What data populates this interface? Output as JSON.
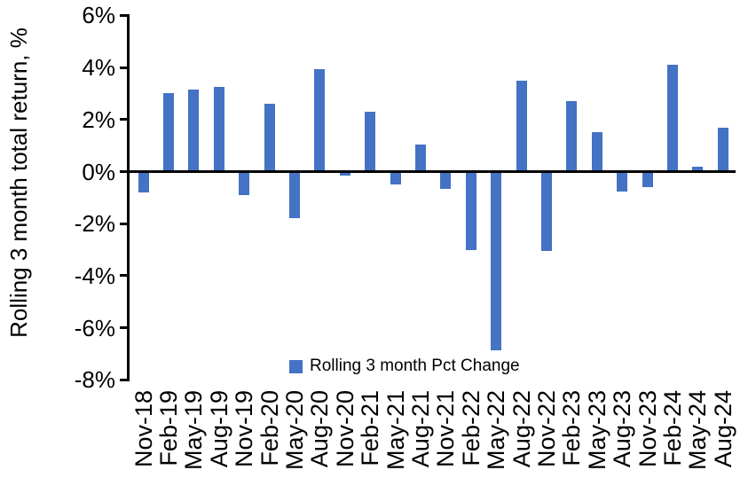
{
  "chart_data": {
    "type": "bar",
    "title": "",
    "ylabel": "Rolling 3 month total return, %",
    "xlabel": "",
    "legend_label": "Rolling 3 month Pct Change",
    "legend_position": "bottom-center",
    "grid": false,
    "bar_color": "#4472C4",
    "axis_color": "#000000",
    "ylim": [
      -8,
      6
    ],
    "y_ticks": [
      {
        "label": "6%",
        "value": 6
      },
      {
        "label": "4%",
        "value": 4
      },
      {
        "label": "2%",
        "value": 2
      },
      {
        "label": "0%",
        "value": 0
      },
      {
        "label": "-2%",
        "value": -2
      },
      {
        "label": "-4%",
        "value": -4
      },
      {
        "label": "-6%",
        "value": -6
      },
      {
        "label": "-8%",
        "value": -8
      }
    ],
    "categories": [
      "Nov-18",
      "Feb-19",
      "May-19",
      "Aug-19",
      "Nov-19",
      "Feb-20",
      "May-20",
      "Aug-20",
      "Nov-20",
      "Feb-21",
      "May-21",
      "Aug-21",
      "Nov-21",
      "Feb-22",
      "May-22",
      "Aug-22",
      "Nov-22",
      "Feb-23",
      "May-23",
      "Aug-23",
      "Nov-23",
      "Feb-24",
      "May-24",
      "Aug-24"
    ],
    "values": [
      -0.8,
      3.0,
      3.15,
      3.25,
      -0.9,
      2.6,
      -1.8,
      3.95,
      -0.15,
      2.3,
      -0.5,
      1.05,
      -0.65,
      -3.0,
      -6.85,
      3.5,
      -3.05,
      2.7,
      1.5,
      -0.75,
      -0.6,
      4.1,
      0.2,
      1.7
    ]
  }
}
